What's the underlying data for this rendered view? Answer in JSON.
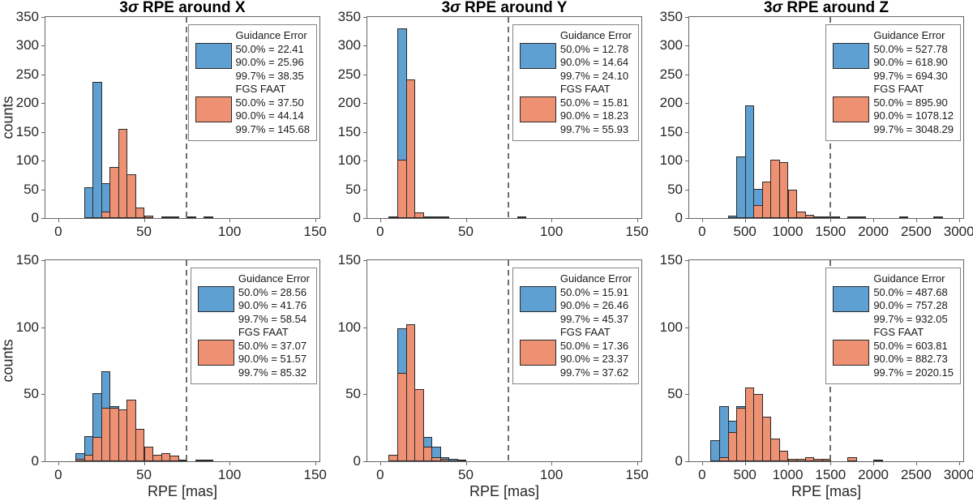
{
  "figure": {
    "ylabel": "counts",
    "xlabel": "RPE [mas]",
    "colors": {
      "guidance": "#5fa0d2",
      "fgs": "#ee9173",
      "bar_edge": "#2a2a2a",
      "dashed_line": "#6f6f6f",
      "axis": "#666666",
      "legend_border": "#848484",
      "text": "#262626"
    }
  },
  "chart_data": [
    {
      "type": "bar",
      "title": "3σ RPE around X",
      "xlabel": "",
      "ylabel": "counts",
      "xlim": [
        -7.5,
        152.5
      ],
      "ylim": [
        0,
        350
      ],
      "xticks": [
        0,
        50,
        100,
        150
      ],
      "yticks": [
        0,
        50,
        100,
        150,
        200,
        250,
        300,
        350
      ],
      "bin_width": 5,
      "threshold_x": 75,
      "grid": false,
      "legend_position": "top-right",
      "series": [
        {
          "name": "Guidance Error",
          "color_key": "guidance",
          "bins": [
            [
              15,
              54
            ],
            [
              20,
              237
            ],
            [
              25,
              61
            ]
          ]
        },
        {
          "name": "FGS FAAT",
          "color_key": "fgs",
          "bins": [
            [
              25,
              11
            ],
            [
              30,
              89
            ],
            [
              35,
              156
            ],
            [
              40,
              76
            ],
            [
              45,
              18
            ],
            [
              50,
              5
            ],
            [
              60,
              1
            ],
            [
              65,
              1
            ],
            [
              75,
              1
            ],
            [
              85,
              1
            ]
          ]
        }
      ],
      "legend": {
        "entries": [
          {
            "label": "Guidance Error",
            "stats": [
              "50.0% = 22.41",
              "90.0% = 25.96",
              "99.7% = 38.35"
            ]
          },
          {
            "label": "FGS FAAT",
            "stats": [
              "50.0% = 37.50",
              "90.0% = 44.14",
              "99.7% = 145.68"
            ]
          }
        ]
      }
    },
    {
      "type": "bar",
      "title": "3σ RPE around Y",
      "xlabel": "",
      "ylabel": "",
      "xlim": [
        -7.5,
        152.5
      ],
      "ylim": [
        0,
        350
      ],
      "xticks": [
        0,
        50,
        100,
        150
      ],
      "yticks": [
        0,
        50,
        100,
        150,
        200,
        250,
        300,
        350
      ],
      "bin_width": 5,
      "threshold_x": 75,
      "grid": false,
      "legend_position": "top-right",
      "series": [
        {
          "name": "Guidance Error",
          "color_key": "guidance",
          "bins": [
            [
              5,
              3
            ],
            [
              10,
              331
            ],
            [
              15,
              40
            ]
          ]
        },
        {
          "name": "FGS FAAT",
          "color_key": "fgs",
          "bins": [
            [
              10,
              101
            ],
            [
              15,
              242
            ],
            [
              20,
              10
            ],
            [
              25,
              3
            ],
            [
              30,
              2
            ],
            [
              35,
              2
            ],
            [
              80,
              1
            ]
          ]
        }
      ],
      "legend": {
        "entries": [
          {
            "label": "Guidance Error",
            "stats": [
              "50.0% = 12.78",
              "90.0% = 14.64",
              "99.7% = 24.10"
            ]
          },
          {
            "label": "FGS FAAT",
            "stats": [
              "50.0% = 15.81",
              "90.0% = 18.23",
              "99.7% = 55.93"
            ]
          }
        ]
      }
    },
    {
      "type": "bar",
      "title": "3σ RPE around Z",
      "xlabel": "",
      "ylabel": "",
      "xlim": [
        -150,
        3050
      ],
      "ylim": [
        0,
        350
      ],
      "xticks": [
        0,
        500,
        1000,
        1500,
        2000,
        2500,
        3000
      ],
      "yticks": [
        0,
        50,
        100,
        150,
        200,
        250,
        300,
        350
      ],
      "bin_width": 100,
      "threshold_x": 1500,
      "grid": false,
      "legend_position": "top-right",
      "series": [
        {
          "name": "Guidance Error",
          "color_key": "guidance",
          "bins": [
            [
              300,
              4
            ],
            [
              400,
              108
            ],
            [
              500,
              196
            ],
            [
              600,
              51
            ]
          ]
        },
        {
          "name": "FGS FAAT",
          "color_key": "fgs",
          "bins": [
            [
              600,
              22
            ],
            [
              700,
              64
            ],
            [
              800,
              101
            ],
            [
              900,
              97
            ],
            [
              1000,
              49
            ],
            [
              1100,
              11
            ],
            [
              1200,
              6
            ],
            [
              1300,
              2
            ],
            [
              1400,
              2
            ],
            [
              1500,
              2
            ],
            [
              1700,
              1
            ],
            [
              1800,
              1
            ],
            [
              2300,
              1
            ],
            [
              2700,
              1
            ]
          ]
        }
      ],
      "legend": {
        "entries": [
          {
            "label": "Guidance Error",
            "stats": [
              "50.0% = 527.78",
              "90.0% = 618.90",
              "99.7% = 694.30"
            ]
          },
          {
            "label": "FGS FAAT",
            "stats": [
              "50.0% = 895.90",
              "90.0% = 1078.12",
              "99.7% = 3048.29"
            ]
          }
        ]
      }
    },
    {
      "type": "bar",
      "title": "",
      "xlabel": "RPE [mas]",
      "ylabel": "counts",
      "xlim": [
        -7.5,
        152.5
      ],
      "ylim": [
        0,
        150
      ],
      "xticks": [
        0,
        50,
        100,
        150
      ],
      "yticks": [
        0,
        50,
        100,
        150
      ],
      "bin_width": 5,
      "threshold_x": 75,
      "grid": false,
      "legend_position": "top-right",
      "series": [
        {
          "name": "Guidance Error",
          "color_key": "guidance",
          "bins": [
            [
              10,
              6
            ],
            [
              15,
              19
            ],
            [
              20,
              51
            ],
            [
              25,
              67
            ],
            [
              30,
              41
            ],
            [
              35,
              20
            ],
            [
              40,
              10
            ],
            [
              45,
              5
            ]
          ]
        },
        {
          "name": "FGS FAAT",
          "color_key": "fgs",
          "bins": [
            [
              10,
              2
            ],
            [
              15,
              5
            ],
            [
              20,
              18
            ],
            [
              25,
              40
            ],
            [
              30,
              40
            ],
            [
              35,
              39
            ],
            [
              40,
              46
            ],
            [
              45,
              24
            ],
            [
              50,
              11
            ],
            [
              55,
              5
            ],
            [
              60,
              6
            ],
            [
              65,
              4
            ],
            [
              70,
              1
            ],
            [
              80,
              1
            ],
            [
              85,
              1
            ]
          ]
        }
      ],
      "legend": {
        "entries": [
          {
            "label": "Guidance Error",
            "stats": [
              "50.0% = 28.56",
              "90.0% = 41.76",
              "99.7% = 58.54"
            ]
          },
          {
            "label": "FGS FAAT",
            "stats": [
              "50.0% = 37.07",
              "90.0% = 51.57",
              "99.7% = 85.32"
            ]
          }
        ]
      }
    },
    {
      "type": "bar",
      "title": "",
      "xlabel": "RPE [mas]",
      "ylabel": "",
      "xlim": [
        -7.5,
        152.5
      ],
      "ylim": [
        0,
        150
      ],
      "xticks": [
        0,
        50,
        100,
        150
      ],
      "yticks": [
        0,
        50,
        100,
        150
      ],
      "bin_width": 5,
      "threshold_x": 75,
      "grid": false,
      "legend_position": "top-right",
      "series": [
        {
          "name": "Guidance Error",
          "color_key": "guidance",
          "bins": [
            [
              10,
              99
            ],
            [
              15,
              90
            ],
            [
              20,
              40
            ],
            [
              25,
              18
            ],
            [
              30,
              11
            ],
            [
              35,
              3
            ],
            [
              40,
              2
            ],
            [
              45,
              1
            ]
          ]
        },
        {
          "name": "FGS FAAT",
          "color_key": "fgs",
          "bins": [
            [
              5,
              5
            ],
            [
              10,
              66
            ],
            [
              15,
              102
            ],
            [
              20,
              54
            ],
            [
              25,
              11
            ],
            [
              30,
              3
            ],
            [
              35,
              2
            ]
          ]
        }
      ],
      "legend": {
        "entries": [
          {
            "label": "Guidance Error",
            "stats": [
              "50.0% = 15.91",
              "90.0% = 26.46",
              "99.7% = 45.37"
            ]
          },
          {
            "label": "FGS FAAT",
            "stats": [
              "50.0% = 17.36",
              "90.0% = 23.37",
              "99.7% = 37.62"
            ]
          }
        ]
      }
    },
    {
      "type": "bar",
      "title": "",
      "xlabel": "RPE [mas]",
      "ylabel": "",
      "xlim": [
        -150,
        3050
      ],
      "ylim": [
        0,
        150
      ],
      "xticks": [
        0,
        500,
        1000,
        1500,
        2000,
        2500,
        3000
      ],
      "yticks": [
        0,
        50,
        100,
        150
      ],
      "bin_width": 100,
      "threshold_x": 1500,
      "grid": false,
      "legend_position": "top-right",
      "series": [
        {
          "name": "Guidance Error",
          "color_key": "guidance",
          "bins": [
            [
              100,
              16
            ],
            [
              200,
              41
            ],
            [
              300,
              30
            ],
            [
              400,
              41
            ],
            [
              500,
              20
            ]
          ]
        },
        {
          "name": "FGS FAAT",
          "color_key": "fgs",
          "bins": [
            [
              200,
              3
            ],
            [
              300,
              22
            ],
            [
              400,
              40
            ],
            [
              500,
              55
            ],
            [
              600,
              50
            ],
            [
              700,
              33
            ],
            [
              800,
              17
            ],
            [
              900,
              8
            ],
            [
              1000,
              2
            ],
            [
              1100,
              2
            ],
            [
              1200,
              3
            ],
            [
              1300,
              2
            ],
            [
              1400,
              2
            ],
            [
              1700,
              3
            ],
            [
              2000,
              1
            ]
          ]
        }
      ],
      "legend": {
        "entries": [
          {
            "label": "Guidance Error",
            "stats": [
              "50.0% = 487.68",
              "90.0% = 757.28",
              "99.7% = 932.05"
            ]
          },
          {
            "label": "FGS FAAT",
            "stats": [
              "50.0% = 603.81",
              "90.0% = 882.73",
              "99.7% = 2020.15"
            ]
          }
        ]
      }
    }
  ]
}
